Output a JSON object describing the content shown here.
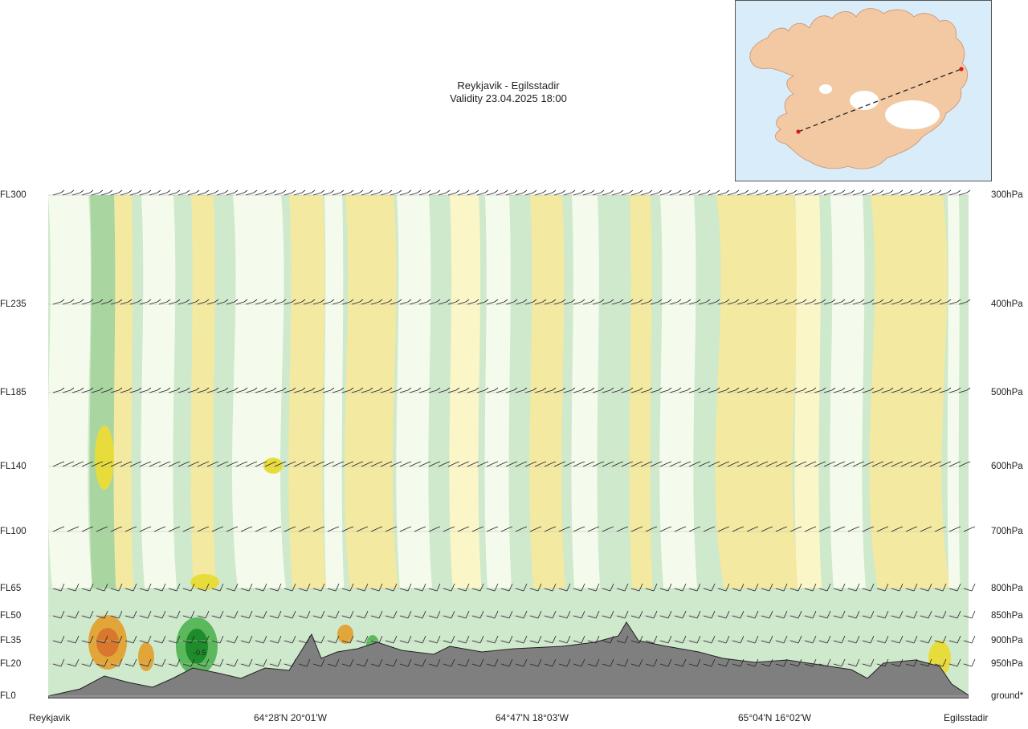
{
  "title": {
    "line1": "Reykjavik - Egilsstadir",
    "line2": "Validity 23.04.2025 18:00"
  },
  "chart_data": {
    "type": "heatmap",
    "description_of_axes": "vertical cross-section along route",
    "route": {
      "start": "Reykjavik",
      "end": "Egilsstadir"
    },
    "x_tick_labels": [
      "Reykjavik",
      "64°28'N 20°01'W",
      "64°47'N 18°03'W",
      "65°04'N 16°02'W",
      "Egilsstadir"
    ],
    "flight_levels": [
      {
        "fl": "FL300",
        "hpa": "300hPa",
        "level": 300
      },
      {
        "fl": "FL235",
        "hpa": "400hPa",
        "level": 235
      },
      {
        "fl": "FL185",
        "hpa": "500hPa",
        "level": 185
      },
      {
        "fl": "FL140",
        "hpa": "600hPa",
        "level": 140
      },
      {
        "fl": "FL100",
        "hpa": "700hPa",
        "level": 100
      },
      {
        "fl": "FL65",
        "hpa": "800hPa",
        "level": 65
      },
      {
        "fl": "FL50",
        "hpa": "850hPa",
        "level": 50
      },
      {
        "fl": "FL35",
        "hpa": "900hPa",
        "level": 35
      },
      {
        "fl": "FL20",
        "hpa": "950hPa",
        "level": 20
      },
      {
        "fl": "FL0",
        "hpa": "ground*",
        "level": 0
      }
    ],
    "contour_label": "-0.5",
    "colors": {
      "strong_neg": "#1e8c2a",
      "neg_mid": "#5cb85c",
      "neg_light": "#a8d5a0",
      "neg_faint": "#cfe9cc",
      "neutral": "#f4fbec",
      "pos_faint": "#fbf6c8",
      "pos_light": "#f3e9a0",
      "pos_mid": "#e8dc3c",
      "pos_strong": "#e2a53a",
      "pos_max": "#d8782e",
      "terrain": "#7f7f7f"
    }
  },
  "inset_map": {
    "colors": {
      "sea": "#d8ecfa",
      "land": "#f3c9a4",
      "ice": "#ffffff",
      "route_line": "#222222",
      "endpoint": "#d81b1b"
    }
  }
}
